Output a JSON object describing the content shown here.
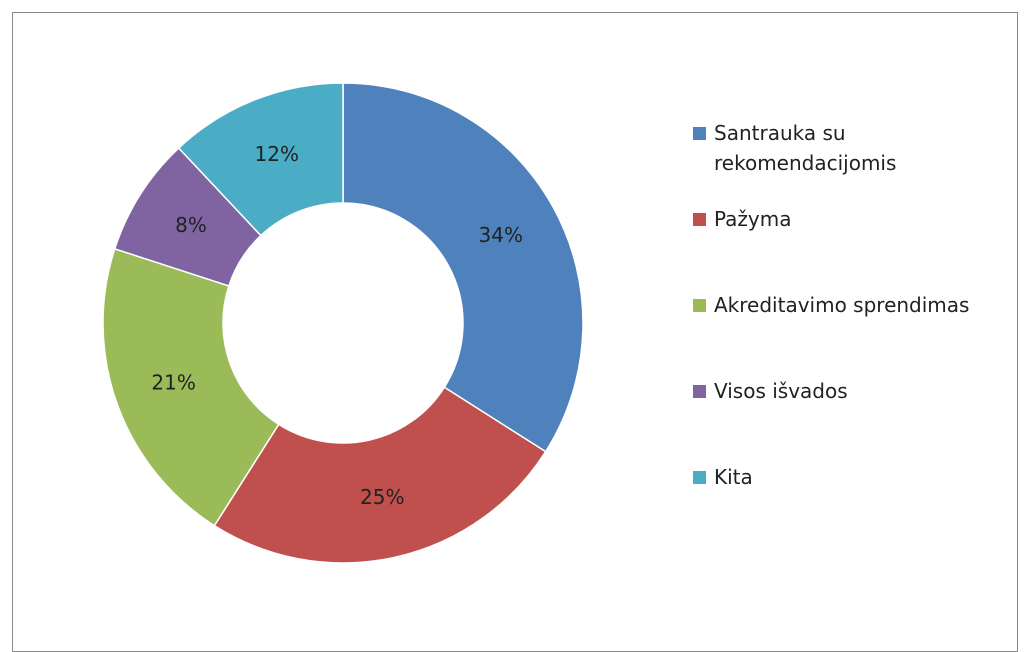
{
  "chart_data": {
    "type": "donut",
    "categories": [
      "Santrauka su rekomendacijomis",
      "Pažyma",
      "Akreditavimo sprendimas",
      "Visos išvados",
      "Kita"
    ],
    "values": [
      34,
      25,
      21,
      8,
      12
    ],
    "value_labels": [
      "34%",
      "25%",
      "21%",
      "8%",
      "12%"
    ],
    "colors": [
      "#4f81bd",
      "#c0504d",
      "#9bbb59",
      "#8064a2",
      "#4bacc6"
    ]
  }
}
